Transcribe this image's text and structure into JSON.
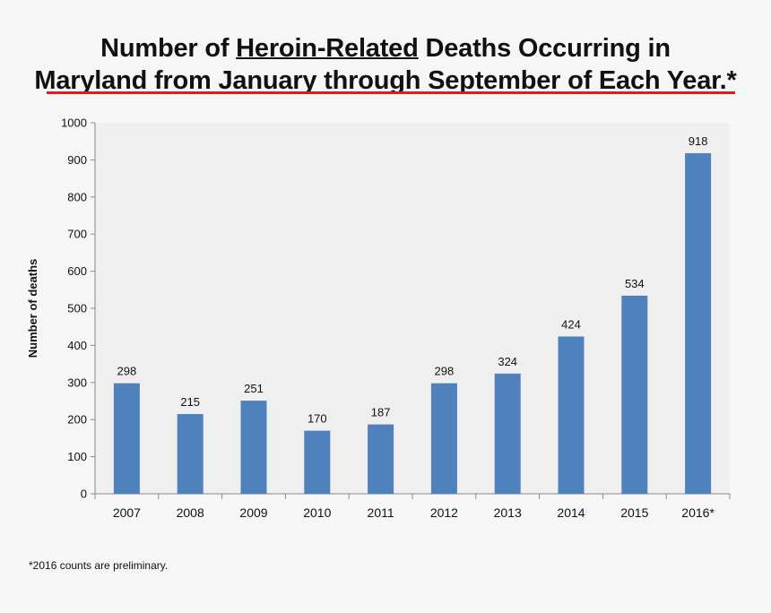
{
  "title": {
    "part1": "Number of ",
    "part2": "Heroin-Related",
    "part3": " Deaths Occurring in",
    "line2": "Maryland from January through September of Each Year.*"
  },
  "footnote": "*2016 counts are preliminary.",
  "colors": {
    "bar": "#4f81bd",
    "rule": "#e01b1b",
    "plot_bg": "#efefef"
  },
  "chart_data": {
    "type": "bar",
    "title": "Number of Heroin-Related Deaths Occurring in Maryland from January through September of Each Year.*",
    "xlabel": "",
    "ylabel": "Number of deaths",
    "categories": [
      "2007",
      "2008",
      "2009",
      "2010",
      "2011",
      "2012",
      "2013",
      "2014",
      "2015",
      "2016*"
    ],
    "values": [
      298,
      215,
      251,
      170,
      187,
      298,
      324,
      424,
      534,
      918
    ],
    "ylim": [
      0,
      1000
    ],
    "yticks": [
      0,
      100,
      200,
      300,
      400,
      500,
      600,
      700,
      800,
      900,
      1000
    ],
    "grid": false,
    "legend": "none"
  }
}
